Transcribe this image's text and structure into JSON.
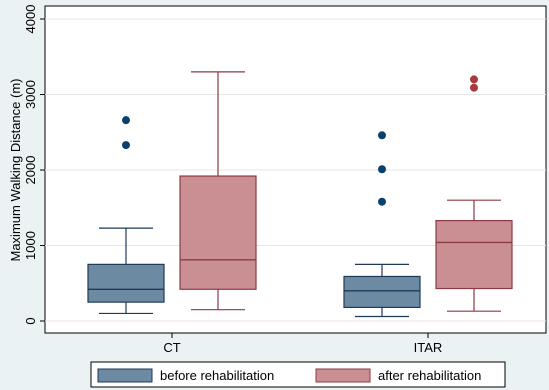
{
  "chart_data": {
    "type": "box",
    "title": "",
    "xlabel": "",
    "ylabel": "Maximum Walking Distance (m)",
    "ylim": [
      0,
      4000
    ],
    "yticks": [
      0,
      1000,
      2000,
      3000,
      4000
    ],
    "grid": true,
    "legend_position": "bottom",
    "categories": [
      "CT",
      "ITAR"
    ],
    "series": [
      {
        "name": "before rehabilitation",
        "color": "#6d8aa3",
        "stroke": "#1f3a56",
        "outlier_color": "#0b3f6e",
        "boxes": [
          {
            "category": "CT",
            "min": 100,
            "q1": 250,
            "median": 420,
            "q3": 750,
            "max": 1230,
            "outliers": [
              2330,
              2660
            ]
          },
          {
            "category": "ITAR",
            "min": 60,
            "q1": 180,
            "median": 400,
            "q3": 590,
            "max": 750,
            "outliers": [
              1580,
              2010,
              2460
            ]
          }
        ]
      },
      {
        "name": "after rehabilitation",
        "color": "#c98f93",
        "stroke": "#8e3a44",
        "outlier_color": "#a83a3e",
        "boxes": [
          {
            "category": "CT",
            "min": 150,
            "q1": 420,
            "median": 810,
            "q3": 1920,
            "max": 3300,
            "outliers": []
          },
          {
            "category": "ITAR",
            "min": 130,
            "q1": 430,
            "median": 1040,
            "q3": 1330,
            "max": 1600,
            "outliers": [
              3090,
              3200
            ]
          }
        ]
      }
    ]
  }
}
